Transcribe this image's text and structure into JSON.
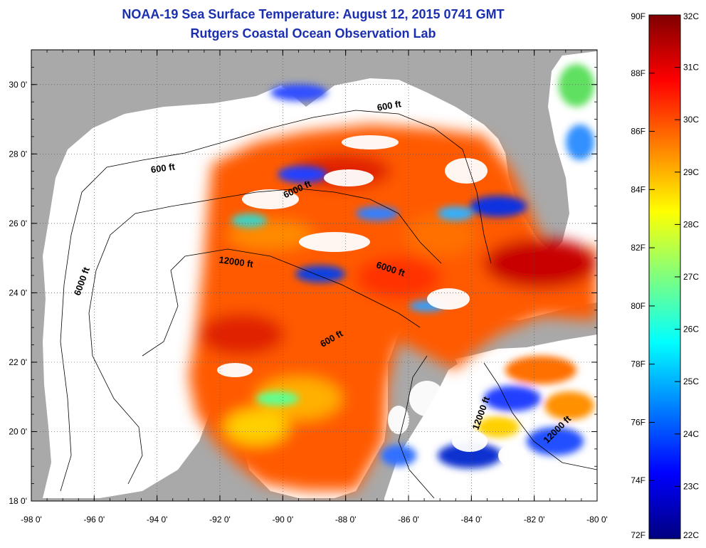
{
  "title": "NOAA-19 Sea Surface Temperature:  August 12, 2015 0741 GMT",
  "subtitle": "Rutgers Coastal Ocean Observation Lab",
  "map": {
    "lon_range": [
      -98,
      -80
    ],
    "lat_range": [
      18,
      31
    ],
    "lon_ticks": [
      "-98 0'",
      "-96 0'",
      "-94 0'",
      "-92 0'",
      "-90 0'",
      "-88 0'",
      "-86 0'",
      "-84 0'",
      "-82 0'",
      "-80 0'"
    ],
    "lat_ticks": [
      "18 0'",
      "20 0'",
      "22 0'",
      "24 0'",
      "26 0'",
      "28 0'",
      "30 0'"
    ],
    "grid": true,
    "land_color": "#a9a9a9",
    "cloud_color": "#ffffff",
    "contour_labels": [
      {
        "text": "600 ft",
        "lon": -93.8,
        "lat": 27.5,
        "angle": -8
      },
      {
        "text": "600 ft",
        "lon": -86.6,
        "lat": 29.3,
        "angle": -10
      },
      {
        "text": "6000 ft",
        "lon": -89.5,
        "lat": 26.9,
        "angle": -25
      },
      {
        "text": "12000 ft",
        "lon": -91.5,
        "lat": 24.8,
        "angle": 8
      },
      {
        "text": "6000 ft",
        "lon": -86.6,
        "lat": 24.6,
        "angle": 18
      },
      {
        "text": "6000 ft",
        "lon": -96.3,
        "lat": 24.3,
        "angle": -70
      },
      {
        "text": "600 ft",
        "lon": -88.4,
        "lat": 22.6,
        "angle": -30
      },
      {
        "text": "12000 ft",
        "lon": -83.6,
        "lat": 20.5,
        "angle": -70
      },
      {
        "text": "12000 ft",
        "lon": -81.2,
        "lat": 20.0,
        "angle": -45
      }
    ]
  },
  "colorbar": {
    "fahrenheit_labels": [
      "90F",
      "88F",
      "86F",
      "84F",
      "82F",
      "80F",
      "78F",
      "76F",
      "74F",
      "72F"
    ],
    "celsius_labels": [
      "32C",
      "31C",
      "30C",
      "29C",
      "28C",
      "27C",
      "26C",
      "25C",
      "24C",
      "23C",
      "22C"
    ],
    "range_f": [
      72,
      90
    ],
    "range_c": [
      22,
      32
    ],
    "colormap": [
      "#00007f",
      "#0000ff",
      "#007fff",
      "#00ffff",
      "#7fff7f",
      "#ffff00",
      "#ff7f00",
      "#ff0000",
      "#7f0000"
    ]
  }
}
